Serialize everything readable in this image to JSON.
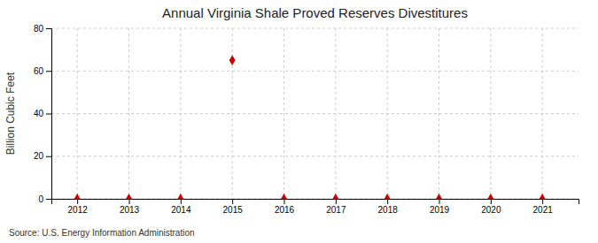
{
  "chart_data": {
    "type": "scatter",
    "title": "Annual Virginia Shale Proved Reserves Divestitures",
    "ylabel": "Billion Cubic Feet",
    "annotations": [
      "Source: U.S. Energy Information Administration"
    ],
    "x": [
      2012,
      2013,
      2014,
      2015,
      2016,
      2017,
      2018,
      2019,
      2020,
      2021
    ],
    "values": [
      0,
      0,
      0,
      65,
      0,
      0,
      0,
      0,
      0,
      0
    ],
    "color": "#cc0000",
    "marker": "diamond",
    "xlim": [
      2011.5,
      2021.7
    ],
    "xticks": [
      2012,
      2013,
      2014,
      2015,
      2016,
      2017,
      2018,
      2019,
      2020,
      2021
    ],
    "ylim": [
      0,
      80
    ],
    "yticks": [
      0,
      20,
      40,
      60,
      80
    ],
    "grid": true
  }
}
